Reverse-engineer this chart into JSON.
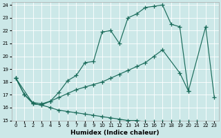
{
  "xlabel": "Humidex (Indice chaleur)",
  "bg_color": "#cce8e8",
  "line_color": "#1a6b5a",
  "grid_color": "#ffffff",
  "xlim": [
    -0.5,
    23.5
  ],
  "ylim": [
    15,
    24.2
  ],
  "yticks": [
    15,
    16,
    17,
    18,
    19,
    20,
    21,
    22,
    23,
    24
  ],
  "line1_x": [
    0,
    1,
    2,
    3,
    4,
    5,
    6,
    7,
    8,
    9,
    10,
    11,
    12,
    13,
    14,
    15,
    16,
    17,
    18,
    19,
    20
  ],
  "line1_y": [
    18.3,
    17.0,
    16.4,
    16.3,
    16.5,
    17.2,
    18.1,
    18.5,
    19.5,
    19.6,
    21.9,
    22.0,
    21.0,
    23.0,
    23.3,
    23.8,
    23.9,
    24.0,
    22.5,
    22.3,
    17.3
  ],
  "line2_x": [
    0,
    1,
    2,
    3,
    4,
    5,
    6,
    7,
    8,
    9,
    10,
    11,
    12,
    13,
    14,
    15,
    16,
    17,
    19,
    20,
    22,
    23
  ],
  "line2_y": [
    18.3,
    17.0,
    16.3,
    16.2,
    16.5,
    16.8,
    17.1,
    17.4,
    17.6,
    17.8,
    18.0,
    18.3,
    18.6,
    18.9,
    19.2,
    19.5,
    20.0,
    20.5,
    18.7,
    17.3,
    22.3,
    16.8
  ],
  "line3_x": [
    0,
    2,
    3,
    4,
    5,
    6,
    7,
    8,
    9,
    10,
    11,
    12,
    13,
    14,
    15,
    16,
    17,
    18,
    19,
    20,
    21,
    22,
    23
  ],
  "line3_y": [
    18.3,
    16.3,
    16.2,
    16.0,
    15.8,
    15.7,
    15.6,
    15.5,
    15.4,
    15.3,
    15.2,
    15.1,
    15.0,
    15.0,
    14.9,
    14.9,
    14.9,
    14.9,
    14.9,
    14.9,
    14.9,
    14.8,
    14.7
  ]
}
